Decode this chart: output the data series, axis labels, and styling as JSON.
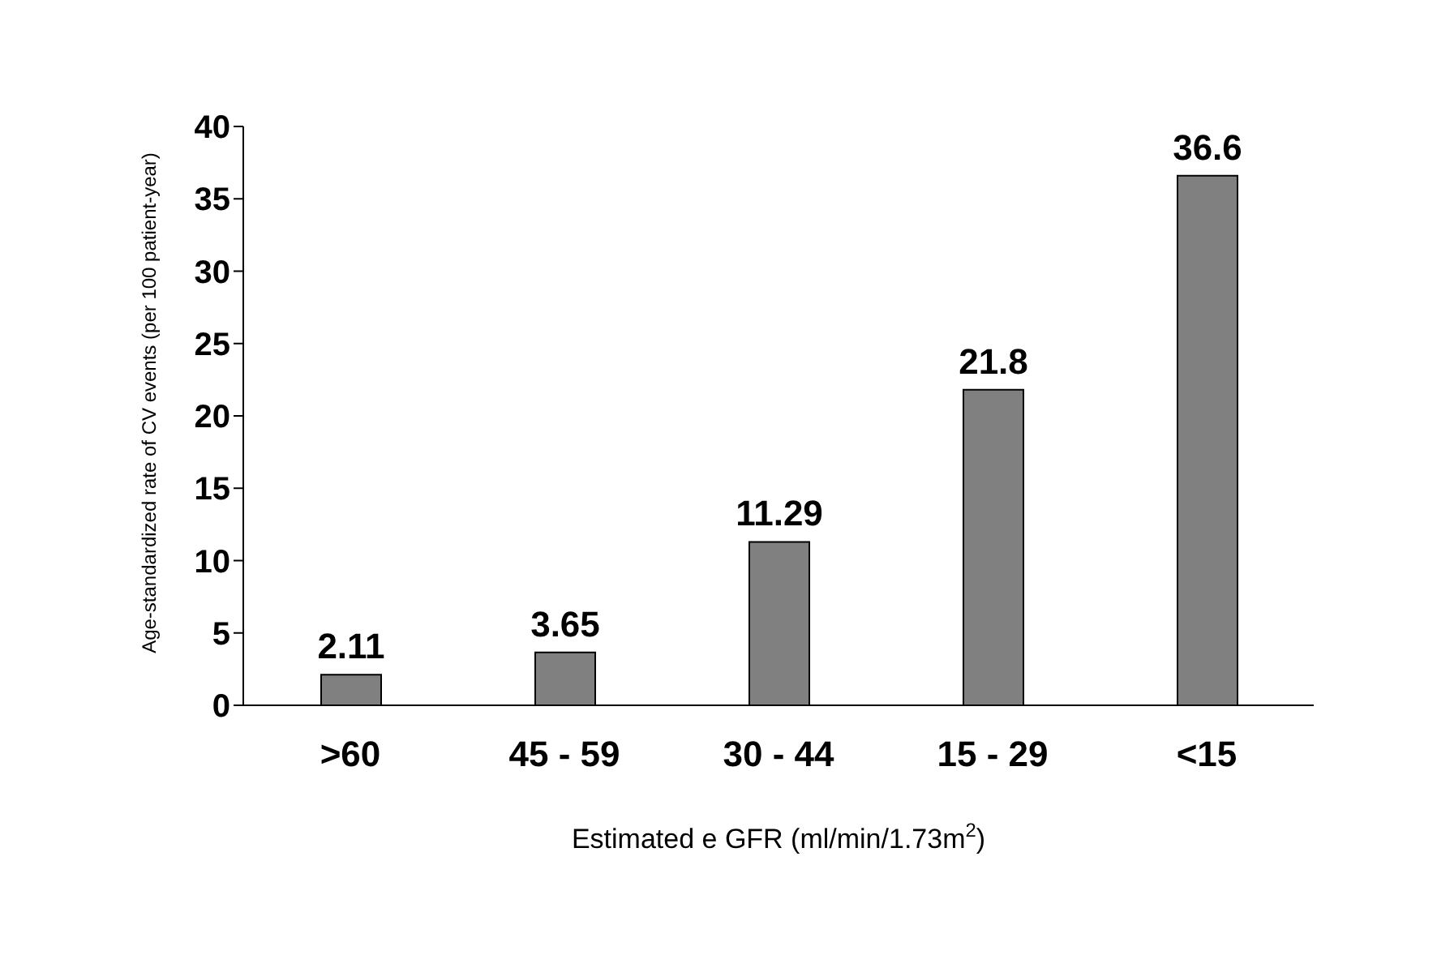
{
  "chart_data": {
    "type": "bar",
    "ylabel": "Age-standardized rate of CV events (per 100 patient-year)",
    "xlabel": "Estimated e GFR (ml/min/1.73m$^{2}$)",
    "categories": [
      ">60",
      "45 - 59",
      "30 - 44",
      "15 - 29",
      "<15"
    ],
    "values": [
      2.11,
      3.65,
      11.29,
      21.8,
      36.6
    ],
    "color": "#808080",
    "ylim": [
      0,
      40
    ],
    "yticks": [
      0,
      5,
      10,
      15,
      20,
      25,
      30,
      35,
      40
    ],
    "grid": false,
    "data_labels": true
  }
}
